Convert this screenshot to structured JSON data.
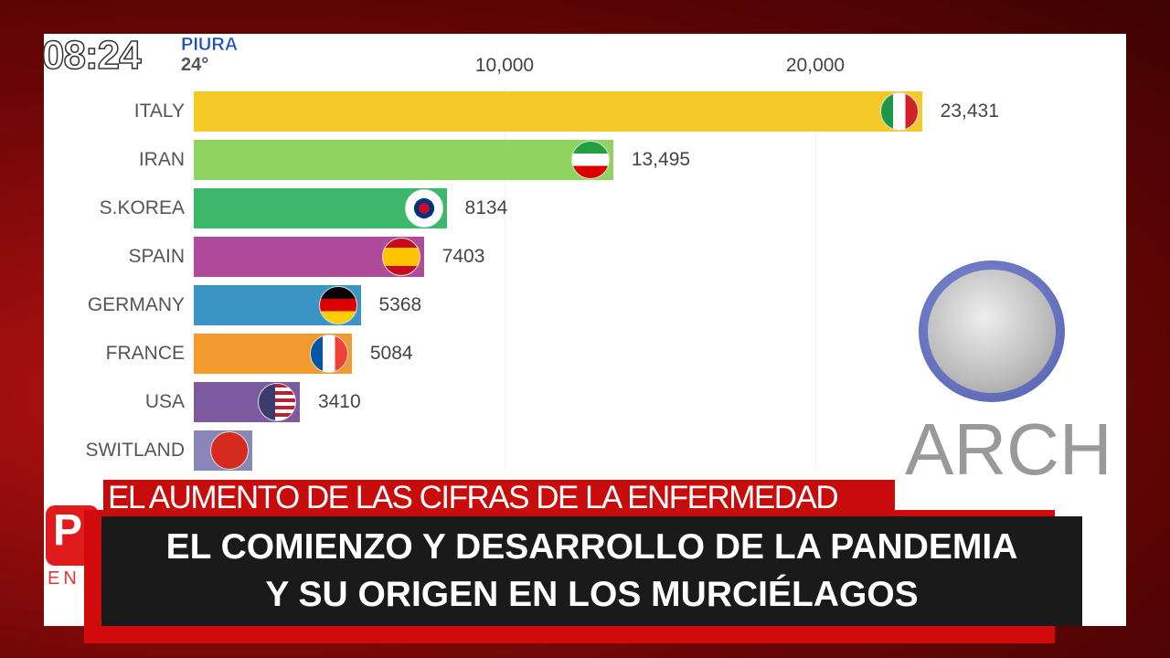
{
  "broadcast": {
    "time": "08:24",
    "city": "PIURA",
    "temperature": "24°",
    "logo_text": "EN"
  },
  "chart_data": {
    "type": "bar",
    "orientation": "horizontal",
    "categories": [
      "ITALY",
      "IRAN",
      "S.KOREA",
      "SPAIN",
      "GERMANY",
      "FRANCE",
      "USA",
      "SWITLAND"
    ],
    "values": [
      23431,
      13495,
      8134,
      7403,
      5368,
      5084,
      3410,
      1880
    ],
    "value_labels": [
      "23,431",
      "13,495",
      "8134",
      "7403",
      "5368",
      "5084",
      "3410",
      ""
    ],
    "colors": [
      "#f5c928",
      "#8fd45e",
      "#3db86b",
      "#b04a9a",
      "#3a94c4",
      "#f39a2e",
      "#7d5aa0",
      "#8a86b8"
    ],
    "flags": [
      "italy-flag",
      "iran-flag",
      "south-korea-flag",
      "spain-flag",
      "germany-flag",
      "france-flag",
      "usa-flag",
      "switzerland-flag"
    ],
    "xticks": [
      "10,000",
      "20,000"
    ],
    "xtick_values": [
      10000,
      20000
    ],
    "xlim": [
      0,
      27500
    ],
    "grid": true
  },
  "watermark": {
    "text": "ARCH"
  },
  "strap": {
    "kicker": "EL AUMENTO DE LAS CIFRAS DE LA ENFERMEDAD",
    "line1": "EL COMIENZO Y DESARROLLO DE LA PANDEMIA",
    "line2": "Y SU ORIGEN EN LOS MURCIÉLAGOS"
  }
}
